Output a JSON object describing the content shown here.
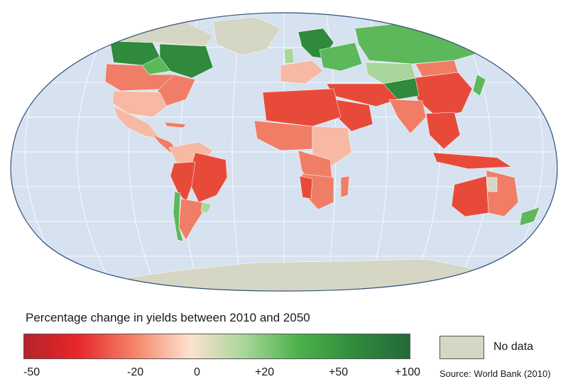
{
  "legend": {
    "title": "Percentage change in yields between 2010 and 2050",
    "ticks": [
      "-50",
      "-20",
      "0",
      "+20",
      "+50",
      "+100"
    ],
    "no_data_label": "No data",
    "source": "Source: World Bank (2010)"
  },
  "colors": {
    "ocean": "#d6e2f0",
    "graticule": "#ffffff",
    "no_data": "#d6d6c4",
    "scale": [
      "#b5232a",
      "#e8262b",
      "#f4876a",
      "#fde2cf",
      "#a9d69a",
      "#4db24b",
      "#2f8a3c",
      "#24693a"
    ],
    "strong_loss": "#e84a3a",
    "moderate_loss": "#f07e67",
    "light_loss": "#f7b9a3",
    "light_gain": "#a9d69a",
    "moderate_gain": "#5cb85a",
    "strong_gain": "#2f8a3c"
  }
}
